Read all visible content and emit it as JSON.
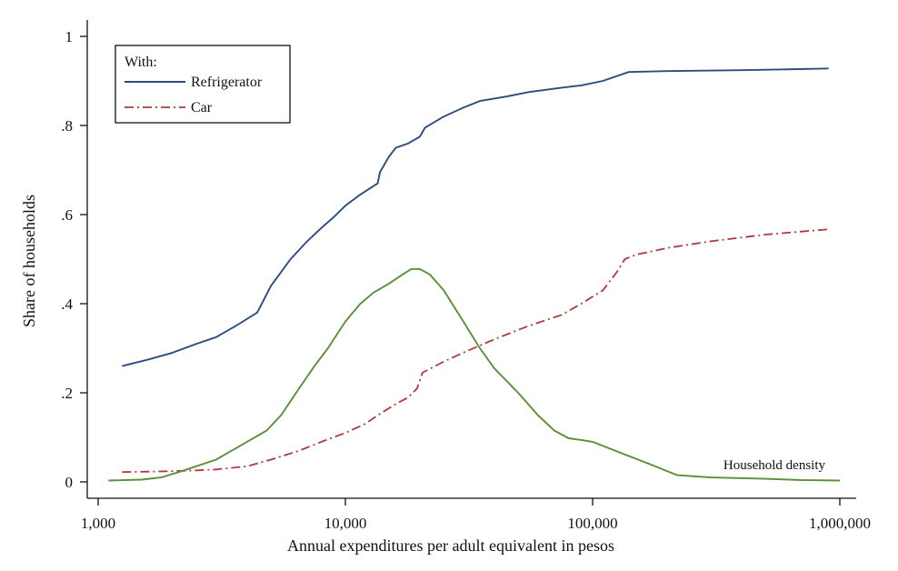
{
  "chart_data": {
    "type": "line",
    "xlabel": "Annual expenditures per adult equivalent in pesos",
    "ylabel": "Share of households",
    "xscale": "log",
    "xlim": [
      1000,
      1000000
    ],
    "ylim": [
      0,
      1
    ],
    "x_ticks": [
      {
        "value": 1000,
        "label": "1,000"
      },
      {
        "value": 10000,
        "label": "10,000"
      },
      {
        "value": 100000,
        "label": "100,000"
      },
      {
        "value": 1000000,
        "label": "1,000,000"
      }
    ],
    "y_ticks": [
      {
        "value": 0,
        "label": "0"
      },
      {
        "value": 0.2,
        "label": ".2"
      },
      {
        "value": 0.4,
        "label": ".4"
      },
      {
        "value": 0.6,
        "label": ".6"
      },
      {
        "value": 0.8,
        "label": ".8"
      },
      {
        "value": 1,
        "label": "1"
      }
    ],
    "grid": false,
    "legend": {
      "title": "With:",
      "position": "top-left",
      "entries": [
        "Refrigerator",
        "Car"
      ]
    },
    "annotations": [
      {
        "text": "Household density",
        "series": "density"
      }
    ],
    "series": [
      {
        "name": "Refrigerator",
        "color": "#2b4c7e",
        "style": "solid",
        "points": [
          [
            1250,
            0.26
          ],
          [
            1600,
            0.275
          ],
          [
            2000,
            0.29
          ],
          [
            2500,
            0.31
          ],
          [
            3000,
            0.325
          ],
          [
            3600,
            0.35
          ],
          [
            4400,
            0.38
          ],
          [
            5000,
            0.44
          ],
          [
            6000,
            0.5
          ],
          [
            7000,
            0.54
          ],
          [
            8000,
            0.57
          ],
          [
            9000,
            0.595
          ],
          [
            10000,
            0.62
          ],
          [
            11500,
            0.645
          ],
          [
            13500,
            0.67
          ],
          [
            13800,
            0.695
          ],
          [
            15000,
            0.73
          ],
          [
            16000,
            0.75
          ],
          [
            18000,
            0.76
          ],
          [
            20000,
            0.775
          ],
          [
            21000,
            0.795
          ],
          [
            25000,
            0.82
          ],
          [
            30000,
            0.84
          ],
          [
            35000,
            0.855
          ],
          [
            45000,
            0.865
          ],
          [
            55000,
            0.875
          ],
          [
            75000,
            0.885
          ],
          [
            90000,
            0.89
          ],
          [
            110000,
            0.9
          ],
          [
            140000,
            0.92
          ],
          [
            200000,
            0.922
          ],
          [
            400000,
            0.924
          ],
          [
            600000,
            0.926
          ],
          [
            900000,
            0.928
          ]
        ]
      },
      {
        "name": "Car",
        "color": "#b03a3a",
        "style": "dash-dot",
        "points": [
          [
            1250,
            0.022
          ],
          [
            1600,
            0.023
          ],
          [
            2000,
            0.024
          ],
          [
            2500,
            0.026
          ],
          [
            3000,
            0.028
          ],
          [
            4000,
            0.035
          ],
          [
            5000,
            0.05
          ],
          [
            6500,
            0.07
          ],
          [
            8000,
            0.09
          ],
          [
            10000,
            0.11
          ],
          [
            12000,
            0.13
          ],
          [
            14000,
            0.155
          ],
          [
            16000,
            0.175
          ],
          [
            18000,
            0.19
          ],
          [
            19500,
            0.21
          ],
          [
            20500,
            0.245
          ],
          [
            25000,
            0.27
          ],
          [
            30000,
            0.29
          ],
          [
            40000,
            0.32
          ],
          [
            55000,
            0.35
          ],
          [
            75000,
            0.375
          ],
          [
            90000,
            0.4
          ],
          [
            110000,
            0.43
          ],
          [
            125000,
            0.47
          ],
          [
            135000,
            0.5
          ],
          [
            150000,
            0.51
          ],
          [
            200000,
            0.525
          ],
          [
            300000,
            0.54
          ],
          [
            500000,
            0.555
          ],
          [
            900000,
            0.567
          ]
        ]
      },
      {
        "name": "",
        "id": "density",
        "color": "#5a8f3c",
        "style": "solid",
        "points": [
          [
            1100,
            0.003
          ],
          [
            1500,
            0.005
          ],
          [
            1800,
            0.01
          ],
          [
            2200,
            0.025
          ],
          [
            3000,
            0.05
          ],
          [
            4000,
            0.09
          ],
          [
            4800,
            0.115
          ],
          [
            5500,
            0.15
          ],
          [
            6500,
            0.21
          ],
          [
            7500,
            0.26
          ],
          [
            8500,
            0.3
          ],
          [
            10000,
            0.36
          ],
          [
            11500,
            0.4
          ],
          [
            13000,
            0.425
          ],
          [
            15000,
            0.445
          ],
          [
            17000,
            0.465
          ],
          [
            18500,
            0.478
          ],
          [
            20000,
            0.478
          ],
          [
            22000,
            0.465
          ],
          [
            25000,
            0.43
          ],
          [
            30000,
            0.36
          ],
          [
            35000,
            0.3
          ],
          [
            40000,
            0.255
          ],
          [
            50000,
            0.2
          ],
          [
            60000,
            0.15
          ],
          [
            70000,
            0.115
          ],
          [
            80000,
            0.098
          ],
          [
            90000,
            0.094
          ],
          [
            100000,
            0.09
          ],
          [
            130000,
            0.065
          ],
          [
            170000,
            0.04
          ],
          [
            220000,
            0.015
          ],
          [
            300000,
            0.01
          ],
          [
            500000,
            0.007
          ],
          [
            700000,
            0.004
          ],
          [
            1000000,
            0.003
          ]
        ]
      }
    ]
  }
}
